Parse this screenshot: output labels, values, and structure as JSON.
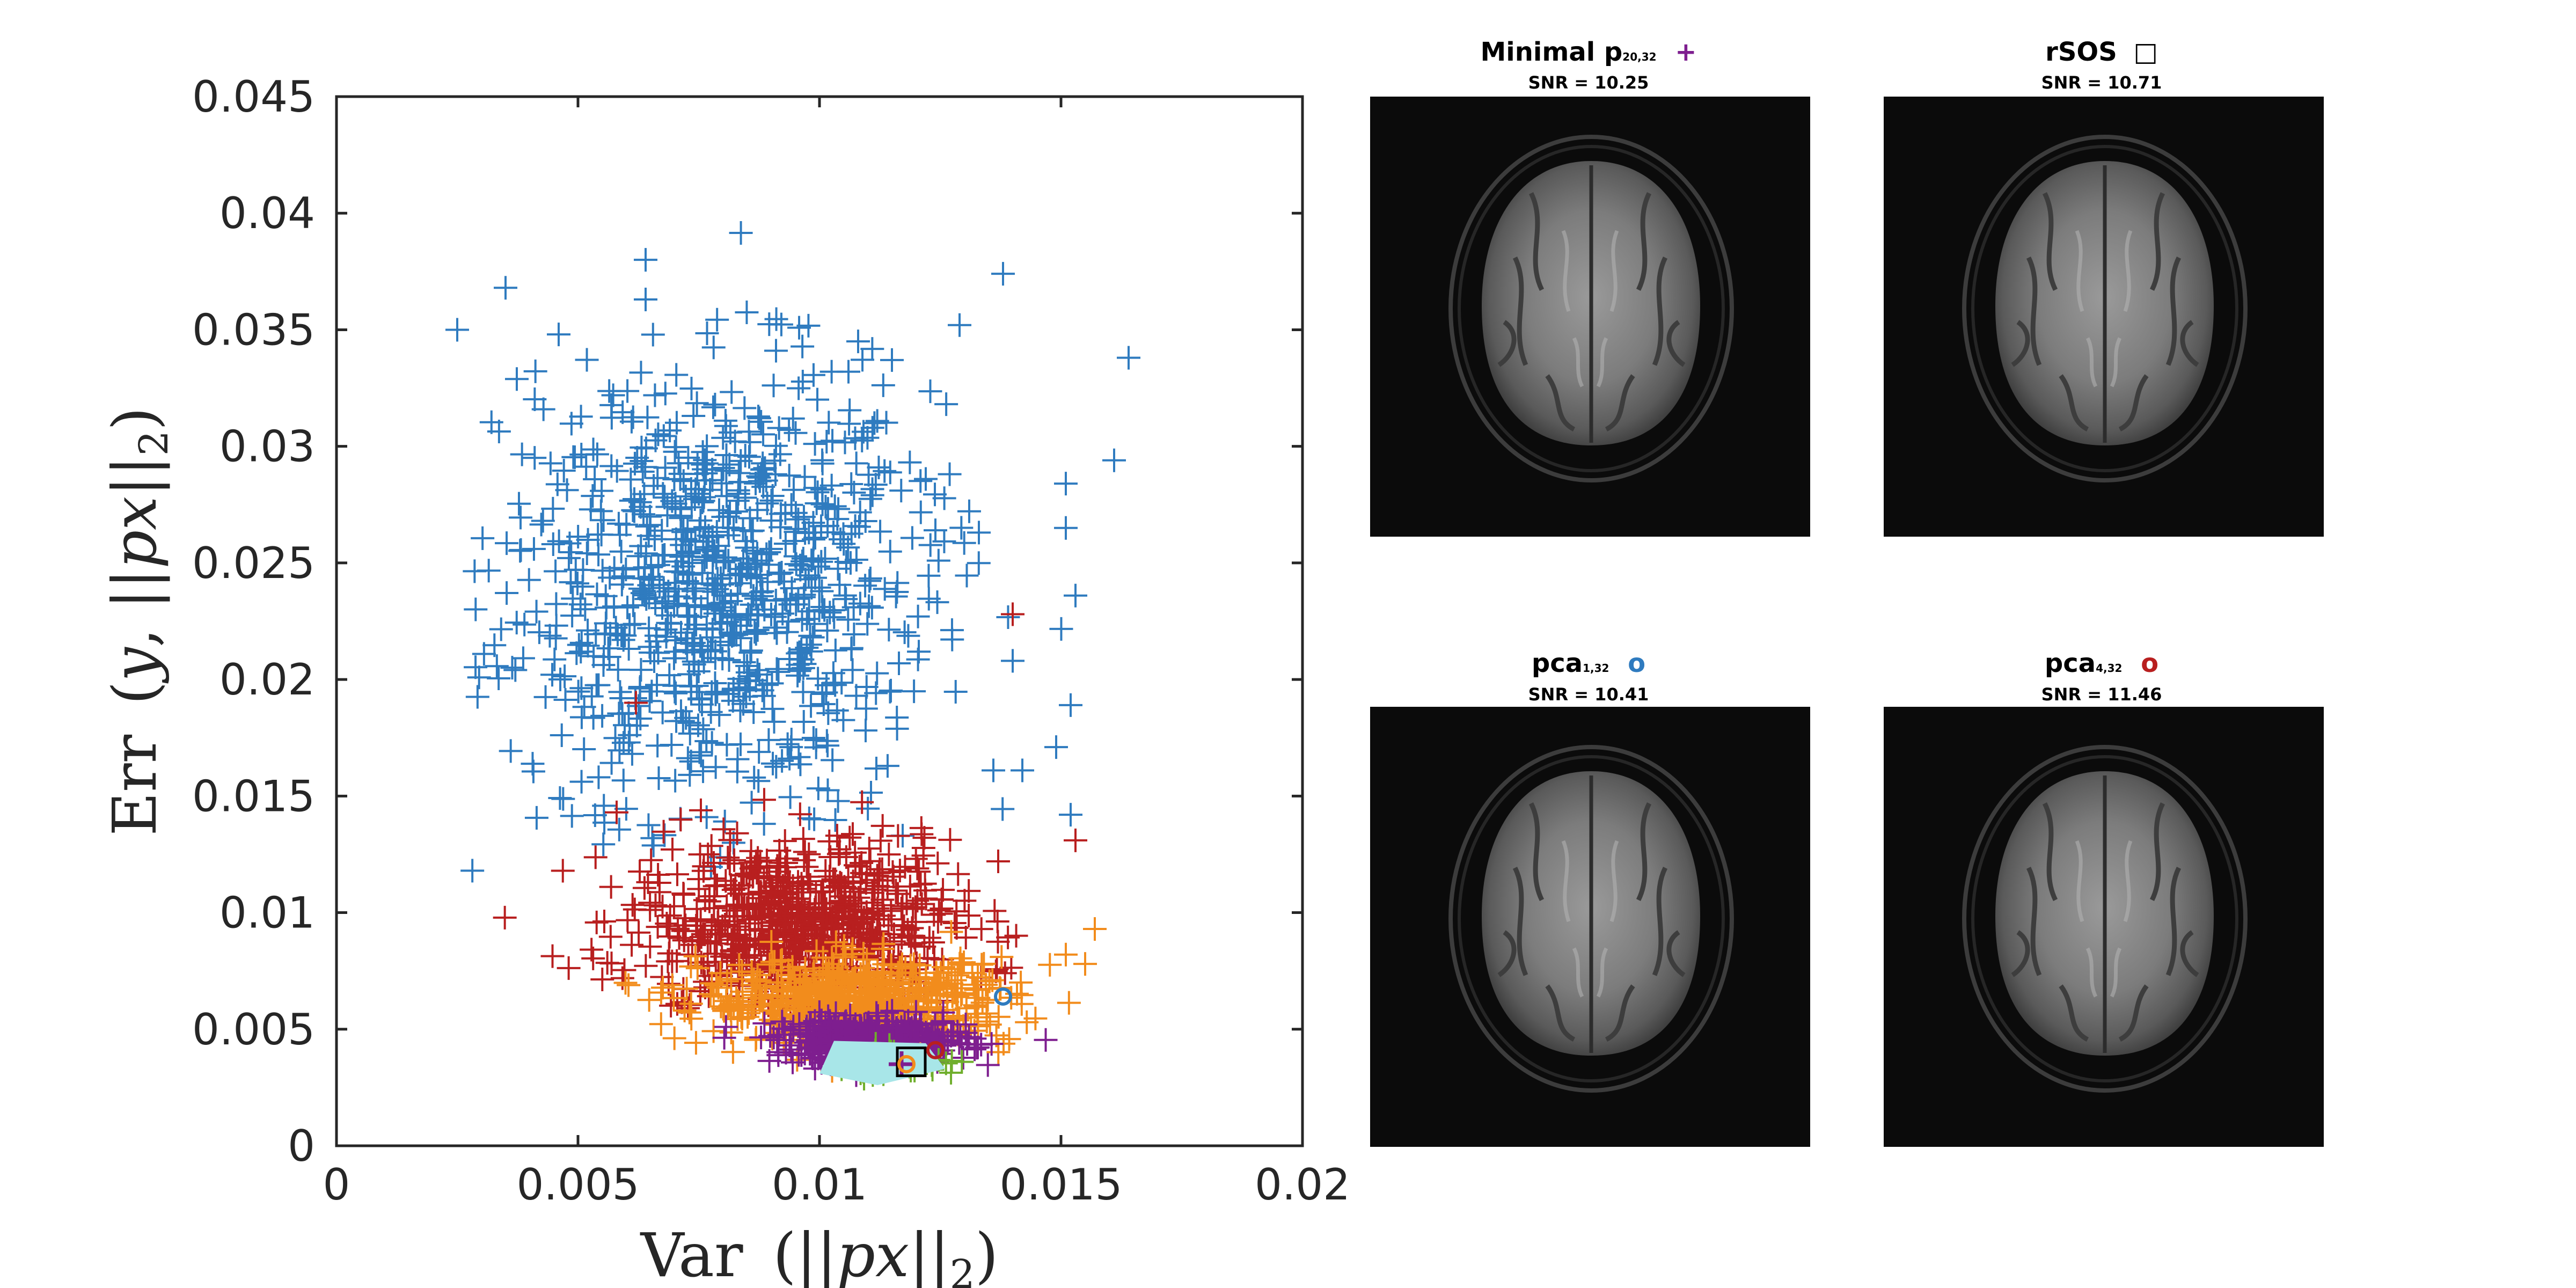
{
  "chart_data": {
    "type": "scatter",
    "title": "",
    "xlabel": "Var",
    "ylabel": "Err",
    "xlabel_tex": "Var (||px||₂)",
    "ylabel_tex": "Err (y, ||px||₂)",
    "xlim": [
      0,
      0.02
    ],
    "ylim": [
      0,
      0.045
    ],
    "x_ticks": [
      0,
      0.005,
      0.01,
      0.015,
      0.02
    ],
    "y_ticks": [
      0,
      0.005,
      0.01,
      0.015,
      0.02,
      0.025,
      0.03,
      0.035,
      0.04,
      0.045
    ],
    "x_tick_labels": [
      "0",
      "0.005",
      "0.01",
      "0.015",
      "0.02"
    ],
    "y_tick_labels": [
      "0",
      "0.005",
      "0.01",
      "0.015",
      "0.02",
      "0.025",
      "0.03",
      "0.035",
      "0.04",
      "0.045"
    ],
    "grid": false,
    "series": [
      {
        "name": "blue",
        "marker": "+",
        "color": "#2f7bbf",
        "count": 900,
        "center": [
          0.0078,
          0.024
        ],
        "spread": [
          0.0022,
          0.0048
        ],
        "outliers": [
          [
            0.0025,
            0.035
          ],
          [
            0.0035,
            0.0368
          ],
          [
            0.0046,
            0.0348
          ],
          [
            0.0064,
            0.038
          ],
          [
            0.0064,
            0.0363
          ],
          [
            0.0091,
            0.0341
          ],
          [
            0.0106,
            0.0332
          ],
          [
            0.0108,
            0.0345
          ],
          [
            0.0115,
            0.0337
          ],
          [
            0.0129,
            0.0352
          ],
          [
            0.0138,
            0.0374
          ],
          [
            0.0164,
            0.0338
          ],
          [
            0.0161,
            0.0294
          ],
          [
            0.0151,
            0.0284
          ],
          [
            0.0151,
            0.0265
          ],
          [
            0.0153,
            0.0236
          ],
          [
            0.0152,
            0.0189
          ],
          [
            0.0149,
            0.0171
          ],
          [
            0.0142,
            0.0161
          ],
          [
            0.0152,
            0.0142
          ],
          [
            0.0133,
            0.0263
          ],
          [
            0.0122,
            0.0286
          ],
          [
            0.0124,
            0.0264
          ],
          [
            0.014,
            0.0208
          ],
          [
            0.0136,
            0.0161
          ]
        ]
      },
      {
        "name": "red",
        "marker": "+",
        "color": "#b81f1f",
        "count": 700,
        "center": [
          0.0095,
          0.0095
        ],
        "spread": [
          0.0016,
          0.0018
        ],
        "outliers": [
          [
            0.014,
            0.0228
          ],
          [
            0.0137,
            0.0122
          ],
          [
            0.0062,
            0.019
          ],
          [
            0.0058,
            0.0143
          ],
          [
            0.0153,
            0.0131
          ]
        ]
      },
      {
        "name": "orange",
        "marker": "+",
        "color": "#f28c1c",
        "count": 600,
        "center": [
          0.0108,
          0.0062
        ],
        "spread": [
          0.0016,
          0.0009
        ],
        "outliers": [
          [
            0.0157,
            0.0093
          ],
          [
            0.0155,
            0.0078
          ],
          [
            0.0151,
            0.0082
          ]
        ]
      },
      {
        "name": "purple",
        "marker": "+",
        "color": "#7e1e8f",
        "count": 400,
        "center": [
          0.0111,
          0.0045
        ],
        "spread": [
          0.001,
          0.0005
        ],
        "outliers": []
      },
      {
        "name": "green",
        "marker": "+",
        "color": "#6fae2c",
        "count": 50,
        "center": [
          0.0115,
          0.0036
        ],
        "spread": [
          0.0007,
          0.0003
        ],
        "outliers": []
      }
    ],
    "regions": [
      {
        "name": "cyan-region",
        "color": "#a8e6e8",
        "points": [
          [
            0.0103,
            0.0045
          ],
          [
            0.0122,
            0.0044
          ],
          [
            0.0126,
            0.0033
          ],
          [
            0.0112,
            0.0026
          ],
          [
            0.01,
            0.0031
          ]
        ]
      }
    ],
    "highlight_markers": [
      {
        "name": "minimal-p-marker",
        "shape": "plus",
        "color": "#7e1e8f",
        "x": 0.0117,
        "y": 0.0035
      },
      {
        "name": "rsos-marker",
        "shape": "square",
        "color": "#000000",
        "x": 0.0119,
        "y": 0.0036
      },
      {
        "name": "pca1-marker",
        "shape": "circle",
        "color": "#2f7bbf",
        "x": 0.0138,
        "y": 0.0064
      },
      {
        "name": "pca4-marker",
        "shape": "circle",
        "color": "#b81f1f",
        "x": 0.0124,
        "y": 0.0041
      },
      {
        "name": "orange-circle-marker",
        "shape": "circle",
        "color": "#f28c1c",
        "x": 0.0118,
        "y": 0.0035
      }
    ]
  },
  "panels": [
    {
      "title": "Minimal p",
      "subscript": "20,32",
      "symbol": "+",
      "symbol_color": "#7e1e8f",
      "snr": "SNR = 10.25"
    },
    {
      "title": "rSOS",
      "subscript": "",
      "symbol": "□",
      "symbol_color": "#000000",
      "snr": "SNR = 10.71"
    },
    {
      "title": "pca",
      "subscript": "1,32",
      "symbol": "o",
      "symbol_color": "#2f7bbf",
      "snr": "SNR = 10.41"
    },
    {
      "title": "pca",
      "subscript": "4,32",
      "symbol": "o",
      "symbol_color": "#b81f1f",
      "snr": "SNR = 11.46"
    }
  ]
}
